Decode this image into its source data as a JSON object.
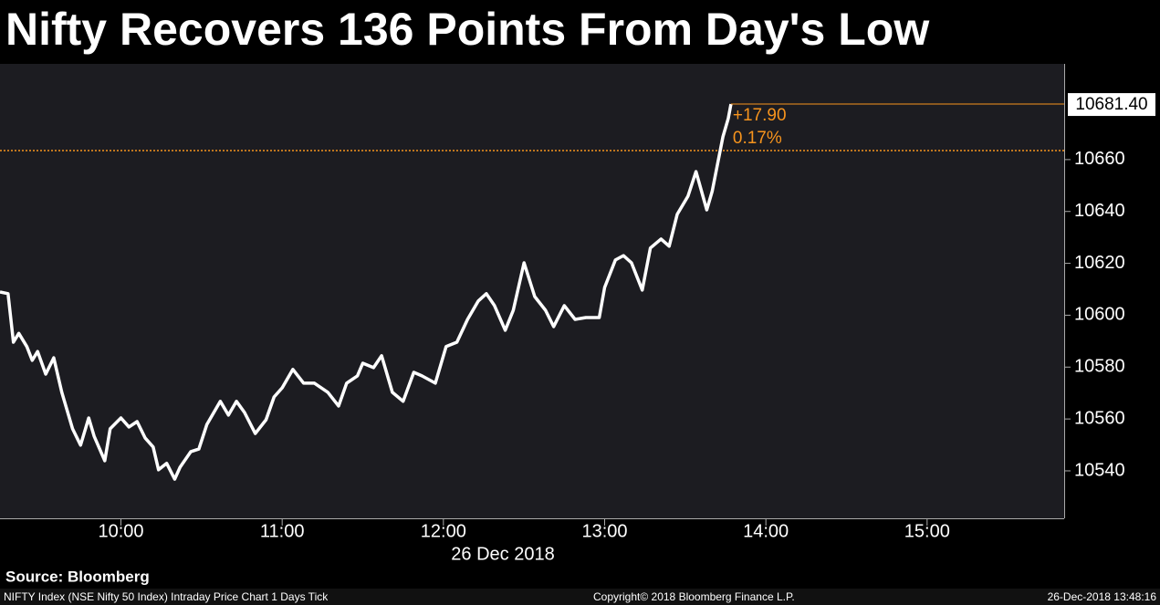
{
  "chart_data": {
    "type": "line",
    "title": "Nifty Recovers 136 Points From Day's Low",
    "source": "Source: Bloomberg",
    "footer_left": "NIFTY Index (NSE Nifty 50 Index) Intraday Price Chart 1 Days  Tick",
    "footer_center": "Copyright© 2018 Bloomberg Finance L.P.",
    "footer_right": "26-Dec-2018 13:48:16",
    "date_label": "26 Dec 2018",
    "x": [
      "09:15",
      "09:18",
      "09:20",
      "09:22",
      "09:25",
      "09:27",
      "09:29",
      "09:32",
      "09:35",
      "09:38",
      "09:42",
      "09:45",
      "09:48",
      "09:50",
      "09:54",
      "09:56",
      "10:00",
      "10:03",
      "10:06",
      "10:09",
      "10:12",
      "10:14",
      "10:17",
      "10:20",
      "10:22",
      "10:26",
      "10:29",
      "10:32",
      "10:37",
      "10:40",
      "10:43",
      "10:46",
      "10:50",
      "10:54",
      "10:57",
      "11:00",
      "11:04",
      "11:08",
      "11:12",
      "11:17",
      "11:21",
      "11:24",
      "11:28",
      "11:30",
      "11:34",
      "11:37",
      "11:41",
      "11:45",
      "11:49",
      "11:52",
      "11:57",
      "12:01",
      "12:05",
      "12:09",
      "12:13",
      "12:16",
      "12:19",
      "12:23",
      "12:26",
      "12:30",
      "12:34",
      "12:38",
      "12:41",
      "12:45",
      "12:49",
      "12:53",
      "12:58",
      "13:00",
      "13:04",
      "13:07",
      "13:10",
      "13:14",
      "13:17",
      "13:21",
      "13:24",
      "13:27",
      "13:31",
      "13:34",
      "13:38",
      "13:40",
      "13:44",
      "13:46",
      "13:47"
    ],
    "series": [
      {
        "name": "NIFTY Index",
        "color": "#ffffff",
        "values": [
          10609,
          10608.3,
          10589.6,
          10593,
          10587.9,
          10582.6,
          10586,
          10577.3,
          10583.6,
          10570.3,
          10556.2,
          10549.9,
          10560.4,
          10553.4,
          10543.9,
          10556.2,
          10560.4,
          10556.9,
          10559,
          10552.7,
          10549.2,
          10540.4,
          10542.9,
          10536.8,
          10541.4,
          10547.4,
          10548.4,
          10557.9,
          10566.8,
          10561.5,
          10566.8,
          10562.5,
          10554.4,
          10559.7,
          10568.5,
          10572,
          10579.1,
          10573.8,
          10573.8,
          10570.3,
          10565,
          10573.8,
          10576.6,
          10581.5,
          10579.8,
          10584.4,
          10570.3,
          10566.8,
          10578,
          10576.6,
          10573.8,
          10587.9,
          10589.6,
          10598.4,
          10605.5,
          10608.3,
          10603.7,
          10594.2,
          10601.9,
          10620.2,
          10607.2,
          10601.9,
          10595.6,
          10603.7,
          10598.4,
          10599.1,
          10599.1,
          10610.7,
          10621.3,
          10623,
          10620.2,
          10609.7,
          10625.9,
          10629.4,
          10626.6,
          10638.9,
          10645.9,
          10655.4,
          10640.6,
          10647.7,
          10668.8,
          10675.8,
          10681.4
        ]
      }
    ],
    "last_price": {
      "value": 10681.4,
      "label": "10681.40"
    },
    "change": {
      "value": 17.9,
      "label": "+17.90"
    },
    "change_pct": {
      "value": 0.17,
      "label": "0.17%"
    },
    "previous_close": 10663.5,
    "annotation_color": "#f7941d",
    "xlim": [
      "09:15",
      "15:51"
    ],
    "xticks": [
      "10:00",
      "11:00",
      "12:00",
      "13:00",
      "14:00",
      "15:00"
    ],
    "ylim": [
      10521.7,
      10696.9
    ],
    "yticks": [
      10540,
      10560,
      10580,
      10600,
      10620,
      10640,
      10660
    ],
    "grid": false
  }
}
